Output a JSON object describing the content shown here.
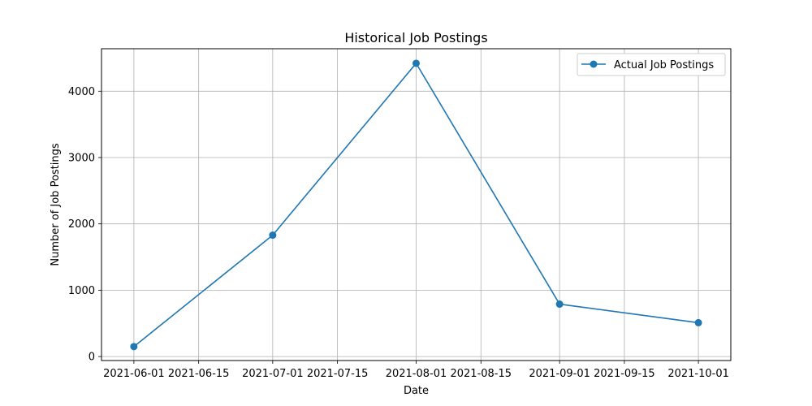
{
  "chart_data": {
    "type": "line",
    "title": "Historical Job Postings",
    "xlabel": "Date",
    "ylabel": "Number of Job Postings",
    "x": [
      "2021-06-01",
      "2021-07-01",
      "2021-08-01",
      "2021-09-01",
      "2021-10-01"
    ],
    "series": [
      {
        "name": "Actual Job Postings",
        "values": [
          150,
          1830,
          4420,
          790,
          510
        ],
        "color": "#1f77b4",
        "marker": "circle"
      }
    ],
    "xlim": [
      "2021-05-25",
      "2021-10-08"
    ],
    "ylim": [
      -60,
      4640
    ],
    "x_ticks": [
      "2021-06-01",
      "2021-06-15",
      "2021-07-01",
      "2021-07-15",
      "2021-08-01",
      "2021-08-15",
      "2021-09-01",
      "2021-09-15",
      "2021-10-01"
    ],
    "y_ticks": [
      0,
      1000,
      2000,
      3000,
      4000
    ],
    "grid": true,
    "legend_position": "top-right"
  }
}
